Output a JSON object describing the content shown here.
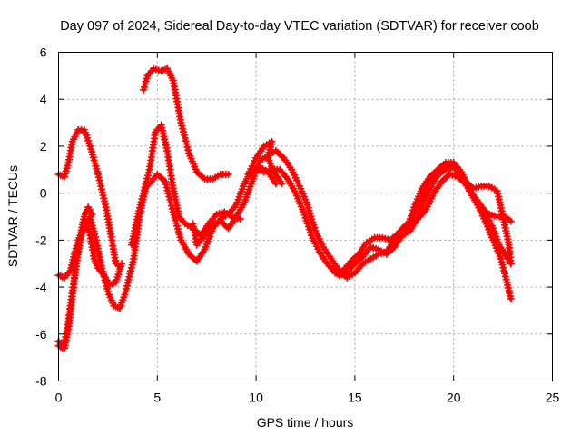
{
  "chart_data": {
    "type": "line",
    "title": "Day 097 of 2024, Sidereal Day-to-day VTEC variation (SDTVAR) for receiver coob",
    "xlabel": "GPS time / hours",
    "ylabel": "SDTVAR / TECUs",
    "xlim": [
      0,
      25
    ],
    "ylim": [
      -8,
      6
    ],
    "xticks": [
      0,
      5,
      10,
      15,
      20,
      25
    ],
    "xtick_labels": [
      "0",
      "5",
      "10",
      "15",
      "20",
      "25"
    ],
    "yticks": [
      -8,
      -6,
      -4,
      -2,
      0,
      2,
      4,
      6
    ],
    "ytick_labels": [
      "-8",
      "-6",
      "-4",
      "-2",
      "0",
      "2",
      "4",
      "6"
    ],
    "grid": true,
    "marker": "+",
    "color": "#ff0000",
    "series": [
      {
        "name": "trace-1",
        "points": [
          [
            0,
            0.8
          ],
          [
            0.3,
            0.7
          ],
          [
            0.5,
            1.3
          ],
          [
            0.7,
            2.2
          ],
          [
            1.0,
            2.7
          ],
          [
            1.3,
            2.7
          ],
          [
            1.6,
            2.0
          ],
          [
            2.0,
            0.8
          ],
          [
            2.4,
            -0.6
          ],
          [
            2.7,
            -2.0
          ],
          [
            2.9,
            -3.0
          ],
          [
            3.1,
            -3.1
          ]
        ]
      },
      {
        "name": "trace-2",
        "points": [
          [
            4.3,
            4.4
          ],
          [
            4.5,
            5.0
          ],
          [
            4.8,
            5.3
          ],
          [
            5.2,
            5.2
          ],
          [
            5.5,
            5.3
          ],
          [
            5.8,
            4.8
          ],
          [
            6.2,
            3.0
          ],
          [
            6.6,
            1.7
          ],
          [
            7.0,
            0.9
          ],
          [
            7.4,
            0.6
          ],
          [
            7.8,
            0.6
          ],
          [
            8.2,
            0.8
          ],
          [
            8.6,
            0.8
          ]
        ]
      },
      {
        "name": "trace-3",
        "points": [
          [
            0,
            -3.5
          ],
          [
            0.3,
            -3.6
          ],
          [
            0.6,
            -3.3
          ],
          [
            0.8,
            -2.6
          ],
          [
            1.0,
            -2.0
          ],
          [
            1.3,
            -1.5
          ],
          [
            1.6,
            -1.0
          ],
          [
            1.9,
            -2.0
          ],
          [
            2.2,
            -3.2
          ],
          [
            2.5,
            -4.2
          ],
          [
            2.8,
            -4.8
          ],
          [
            3.1,
            -4.9
          ],
          [
            3.4,
            -4.2
          ],
          [
            3.8,
            -2.8
          ],
          [
            4.1,
            -1.0
          ],
          [
            4.4,
            0.2
          ],
          [
            4.7,
            0.5
          ],
          [
            5.0,
            0.8
          ],
          [
            5.4,
            0.5
          ],
          [
            5.8,
            -0.8
          ],
          [
            6.2,
            -2.0
          ],
          [
            6.6,
            -2.6
          ],
          [
            7.0,
            -2.9
          ],
          [
            7.4,
            -2.4
          ],
          [
            7.8,
            -1.5
          ],
          [
            8.2,
            -1.1
          ],
          [
            8.6,
            -0.9
          ],
          [
            9.0,
            -0.5
          ],
          [
            9.4,
            0.4
          ],
          [
            9.8,
            1.0
          ],
          [
            10.2,
            1.1
          ],
          [
            10.6,
            0.9
          ],
          [
            11.0,
            0.4
          ]
        ]
      },
      {
        "name": "trace-4",
        "points": [
          [
            0,
            -6.5
          ],
          [
            0.2,
            -6.6
          ],
          [
            0.4,
            -6.0
          ],
          [
            0.6,
            -4.8
          ],
          [
            0.8,
            -3.6
          ],
          [
            1.0,
            -2.5
          ],
          [
            1.2,
            -1.6
          ],
          [
            1.4,
            -1.3
          ],
          [
            1.6,
            -1.8
          ],
          [
            1.8,
            -2.8
          ],
          [
            2.0,
            -3.2
          ],
          [
            2.3,
            -3.5
          ],
          [
            2.6,
            -3.9
          ],
          [
            2.9,
            -3.8
          ],
          [
            3.2,
            -3.0
          ]
        ]
      },
      {
        "name": "trace-5",
        "points": [
          [
            0,
            -6.3
          ],
          [
            0.3,
            -6.6
          ],
          [
            0.5,
            -5.8
          ],
          [
            0.7,
            -4.4
          ],
          [
            0.9,
            -3.0
          ],
          [
            1.1,
            -1.8
          ],
          [
            1.3,
            -1.0
          ],
          [
            1.5,
            -0.6
          ],
          [
            1.7,
            -0.9
          ]
        ]
      },
      {
        "name": "trace-6",
        "points": [
          [
            3.7,
            -2.2
          ],
          [
            4.0,
            -1.0
          ],
          [
            4.3,
            0.0
          ],
          [
            4.6,
            1.0
          ],
          [
            4.9,
            2.6
          ],
          [
            5.2,
            2.9
          ],
          [
            5.5,
            1.8
          ],
          [
            5.8,
            0.2
          ],
          [
            6.1,
            -1.0
          ],
          [
            6.4,
            -1.3
          ],
          [
            6.8,
            -1.5
          ],
          [
            7.2,
            -1.8
          ],
          [
            7.6,
            -1.3
          ],
          [
            8.0,
            -0.9
          ],
          [
            8.4,
            -0.8
          ],
          [
            8.8,
            -1.0
          ],
          [
            9.2,
            -1.1
          ]
        ]
      },
      {
        "name": "trace-7",
        "points": [
          [
            6.8,
            -1.3
          ],
          [
            7.0,
            -2.2
          ],
          [
            7.4,
            -1.8
          ],
          [
            7.8,
            -1.3
          ],
          [
            8.2,
            -1.2
          ],
          [
            8.6,
            -1.5
          ],
          [
            9.0,
            -1.0
          ],
          [
            9.4,
            -0.4
          ],
          [
            9.8,
            0.5
          ],
          [
            10.2,
            1.4
          ],
          [
            10.6,
            1.6
          ],
          [
            11.0,
            1.8
          ],
          [
            11.4,
            1.5
          ],
          [
            11.8,
            1.0
          ],
          [
            12.2,
            0.3
          ],
          [
            12.6,
            -0.5
          ],
          [
            13.0,
            -1.6
          ],
          [
            13.4,
            -2.3
          ],
          [
            13.8,
            -2.8
          ],
          [
            14.2,
            -3.3
          ],
          [
            14.6,
            -3.6
          ],
          [
            15.0,
            -3.4
          ],
          [
            15.4,
            -3.0
          ],
          [
            15.8,
            -2.8
          ],
          [
            16.2,
            -2.6
          ],
          [
            16.6,
            -2.5
          ],
          [
            17.0,
            -2.0
          ],
          [
            17.4,
            -1.5
          ],
          [
            17.8,
            -1.2
          ],
          [
            18.2,
            -1.1
          ],
          [
            18.6,
            -0.7
          ],
          [
            19.0,
            0.0
          ],
          [
            19.4,
            0.5
          ],
          [
            19.8,
            0.8
          ],
          [
            20.2,
            0.7
          ],
          [
            20.6,
            0.4
          ],
          [
            21.0,
            -0.1
          ],
          [
            21.4,
            -0.6
          ],
          [
            21.8,
            -0.9
          ],
          [
            22.2,
            -1.0
          ],
          [
            22.6,
            -1.0
          ],
          [
            22.9,
            -1.2
          ]
        ]
      },
      {
        "name": "trace-8",
        "points": [
          [
            9.6,
            0.8
          ],
          [
            10.0,
            1.5
          ],
          [
            10.4,
            2.0
          ],
          [
            10.8,
            2.2
          ],
          [
            10.6,
            1.5
          ],
          [
            10.9,
            0.9
          ],
          [
            11.3,
            0.4
          ]
        ]
      },
      {
        "name": "trace-9",
        "points": [
          [
            10.0,
            1.0
          ],
          [
            10.4,
            0.9
          ],
          [
            10.8,
            1.0
          ],
          [
            11.2,
            1.0
          ],
          [
            11.6,
            0.6
          ],
          [
            12.0,
            0.0
          ],
          [
            12.4,
            -0.8
          ],
          [
            12.8,
            -1.8
          ],
          [
            13.2,
            -2.5
          ],
          [
            13.6,
            -3.0
          ],
          [
            14.0,
            -3.4
          ],
          [
            14.4,
            -3.3
          ],
          [
            14.8,
            -2.9
          ],
          [
            15.2,
            -2.6
          ],
          [
            15.6,
            -2.1
          ],
          [
            16.0,
            -1.9
          ],
          [
            16.4,
            -1.9
          ],
          [
            16.8,
            -2.0
          ],
          [
            17.2,
            -1.7
          ],
          [
            17.6,
            -1.4
          ],
          [
            18.0,
            -0.9
          ],
          [
            18.4,
            -0.2
          ],
          [
            18.8,
            0.4
          ],
          [
            19.2,
            0.8
          ],
          [
            19.6,
            1.0
          ],
          [
            20.0,
            1.1
          ],
          [
            20.4,
            0.7
          ],
          [
            20.8,
            0.1
          ],
          [
            21.2,
            -0.5
          ],
          [
            21.6,
            -1.2
          ],
          [
            22.0,
            -2.0
          ],
          [
            22.4,
            -2.8
          ],
          [
            22.7,
            -3.8
          ],
          [
            22.9,
            -4.5
          ]
        ]
      },
      {
        "name": "trace-10",
        "points": [
          [
            13.8,
            -3.2
          ],
          [
            14.2,
            -3.5
          ],
          [
            14.6,
            -3.4
          ],
          [
            15.0,
            -3.0
          ],
          [
            15.4,
            -2.7
          ],
          [
            15.8,
            -2.3
          ],
          [
            16.2,
            -2.4
          ],
          [
            16.6,
            -2.6
          ],
          [
            17.0,
            -2.3
          ],
          [
            17.4,
            -1.8
          ],
          [
            17.8,
            -1.6
          ],
          [
            18.2,
            -1.0
          ],
          [
            18.6,
            -0.2
          ],
          [
            19.0,
            0.5
          ],
          [
            19.4,
            1.0
          ],
          [
            19.8,
            1.2
          ],
          [
            20.2,
            1.0
          ],
          [
            20.6,
            0.5
          ],
          [
            21.0,
            0.2
          ],
          [
            21.4,
            0.3
          ],
          [
            21.8,
            0.3
          ],
          [
            22.2,
            0.1
          ],
          [
            22.5,
            -1.0
          ],
          [
            22.8,
            -2.2
          ],
          [
            22.9,
            -3.0
          ]
        ]
      },
      {
        "name": "trace-11",
        "points": [
          [
            17.6,
            -1.6
          ],
          [
            18.0,
            -0.6
          ],
          [
            18.4,
            0.2
          ],
          [
            18.8,
            0.7
          ],
          [
            19.2,
            1.0
          ],
          [
            19.6,
            1.3
          ],
          [
            20.0,
            1.3
          ],
          [
            20.4,
            0.9
          ],
          [
            20.8,
            0.1
          ],
          [
            21.2,
            -0.3
          ],
          [
            21.6,
            -0.8
          ],
          [
            22.0,
            -1.5
          ],
          [
            22.3,
            -2.2
          ],
          [
            22.6,
            -2.6
          ],
          [
            22.9,
            -3.0
          ]
        ]
      }
    ]
  }
}
